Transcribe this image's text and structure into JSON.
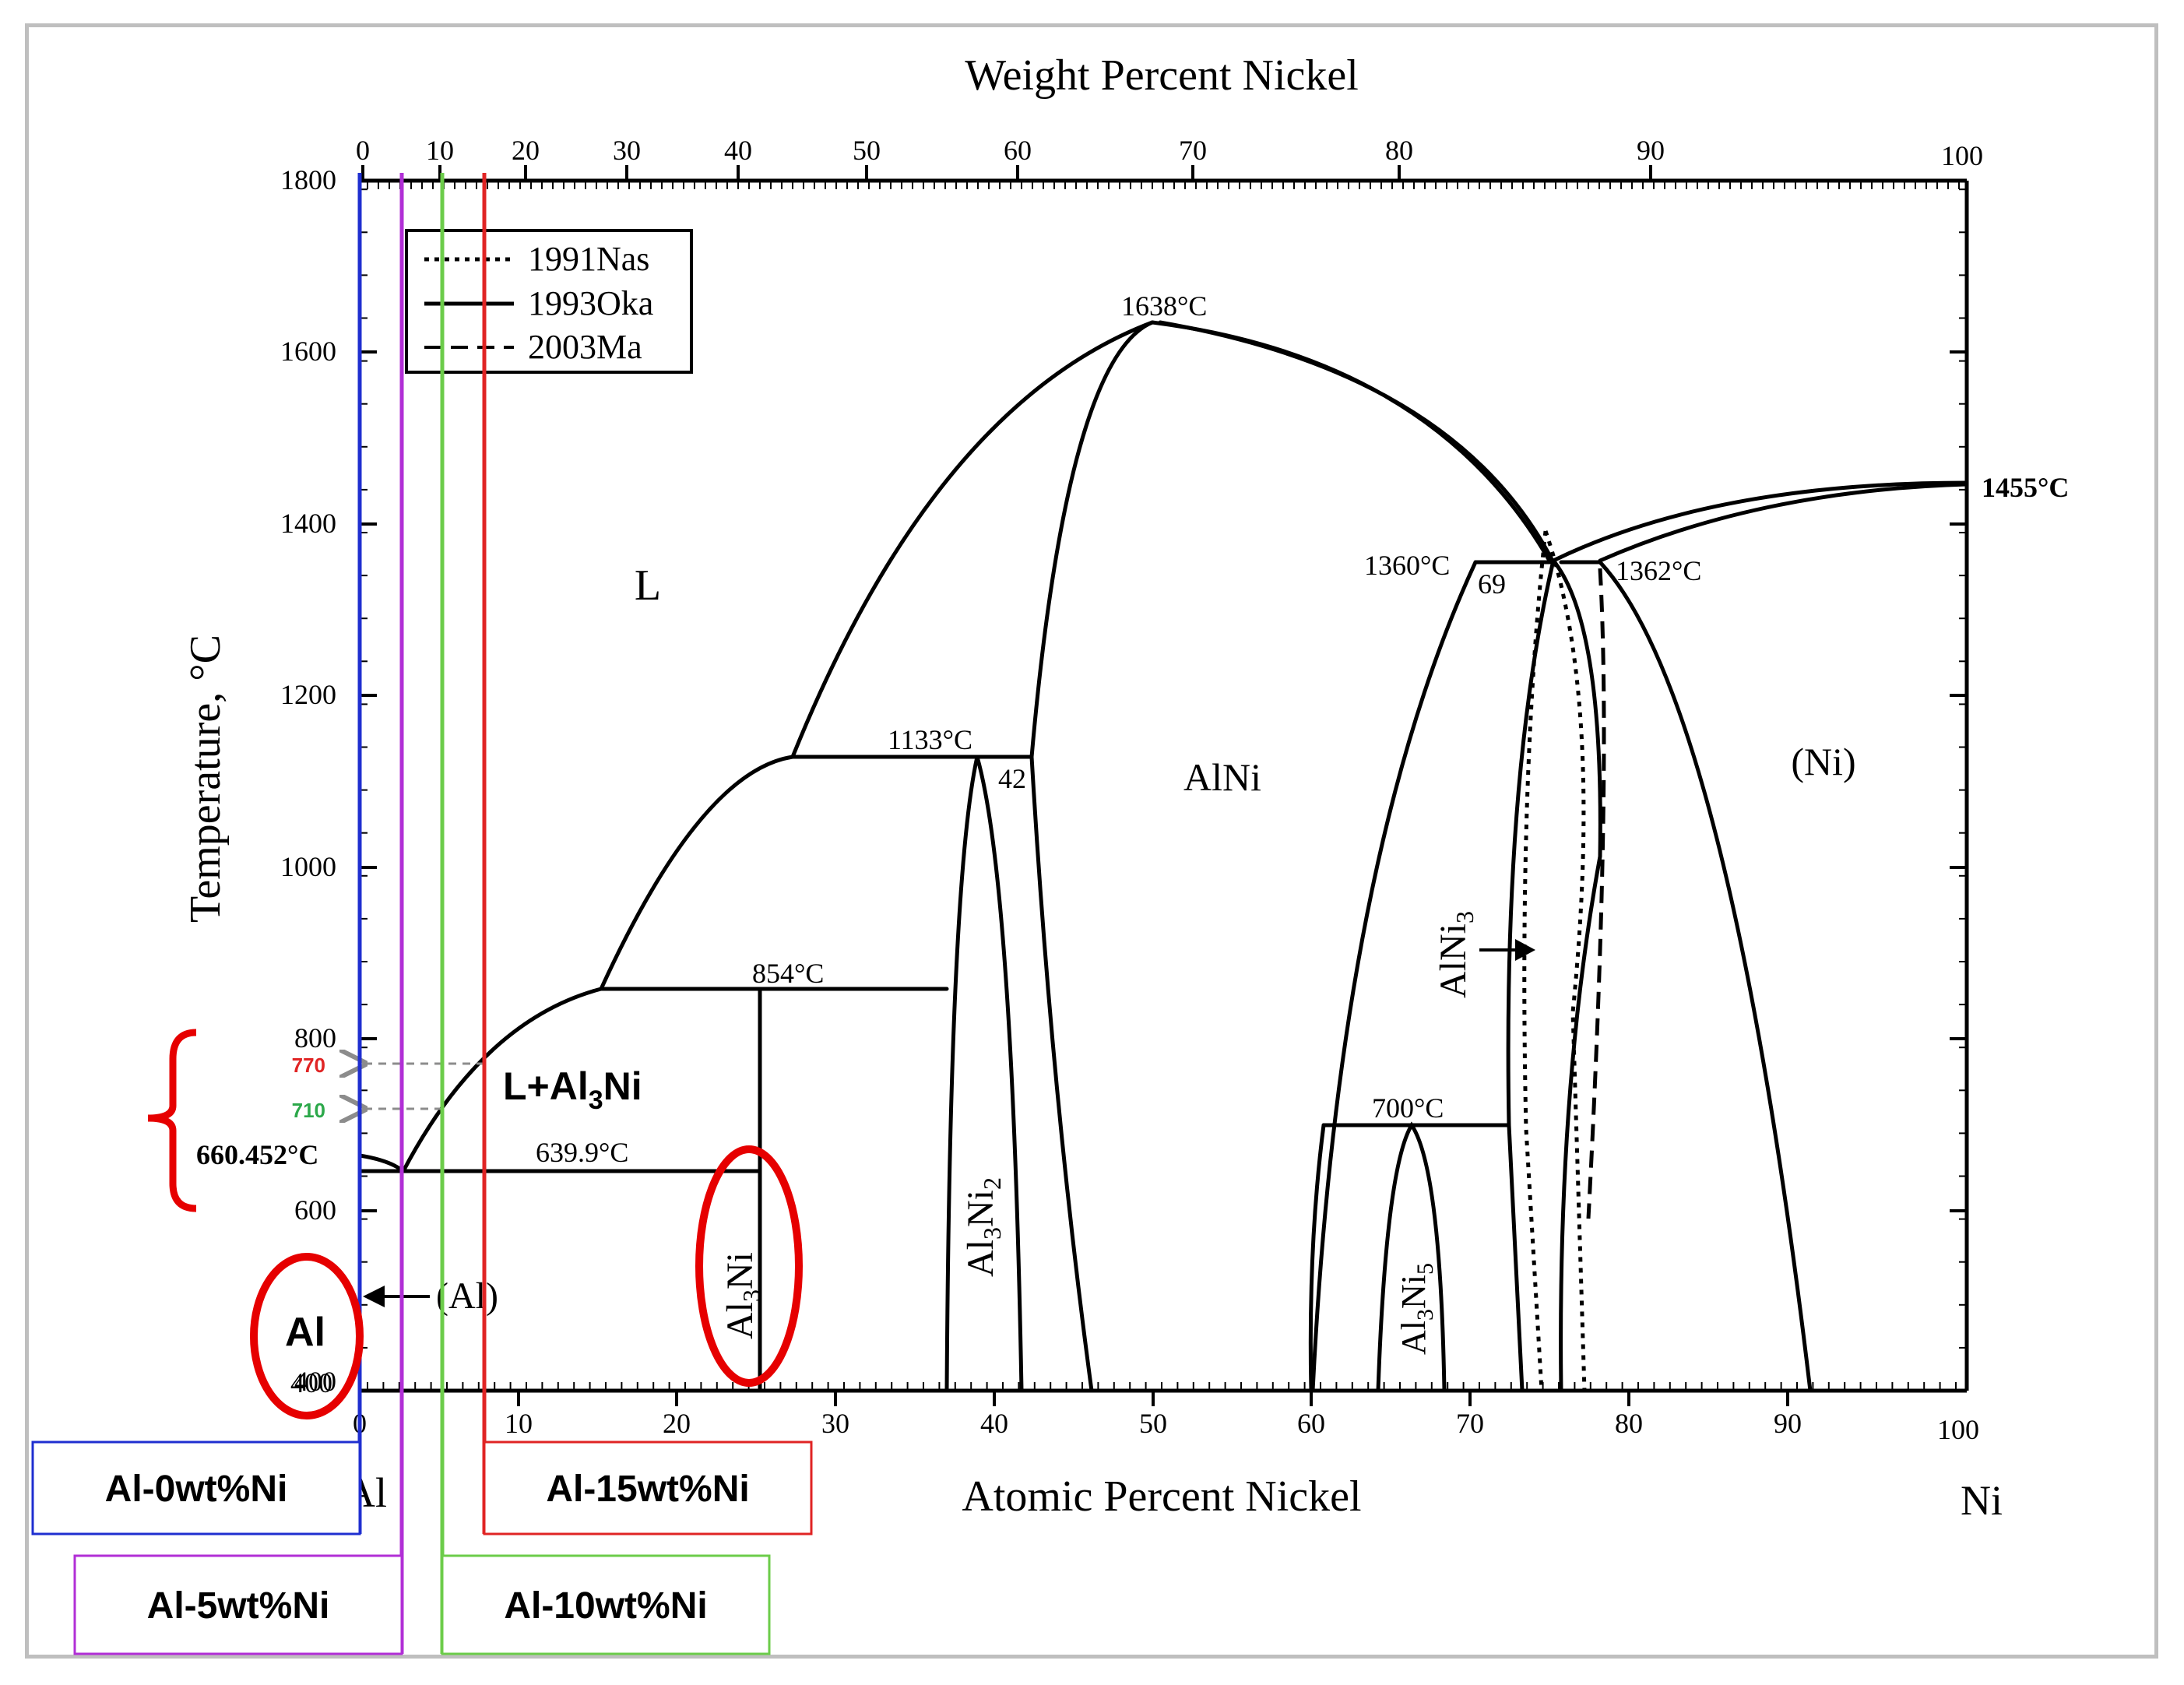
{
  "diagram": {
    "top_axis_title": "Weight Percent Nickel",
    "bottom_axis_title": "Atomic Percent Nickel",
    "y_axis_title": "Temperature, °C",
    "element_left": "Al",
    "element_right": "Ni",
    "top_ticks": [
      "0",
      "10",
      "20",
      "30",
      "40",
      "50",
      "60",
      "70",
      "80",
      "90",
      "100"
    ],
    "bottom_ticks": [
      "0",
      "10",
      "20",
      "30",
      "40",
      "50",
      "60",
      "70",
      "80",
      "90",
      "100"
    ],
    "y_ticks": [
      "400",
      "600",
      "800",
      "1000",
      "1200",
      "1400",
      "1600",
      "1800"
    ],
    "legend": [
      {
        "label": "1991Nas",
        "style": "dotted"
      },
      {
        "label": "1993Oka",
        "style": "solid"
      },
      {
        "label": "2003Ma",
        "style": "dashed"
      }
    ],
    "phase_labels": {
      "liquid": "L",
      "alni": "AlNi",
      "ni": "(Ni)",
      "al_solid": "(Al)",
      "al3ni2_main": "Al",
      "al3ni2_sub1": "3",
      "al3ni2_mid": "Ni",
      "al3ni2_sub2": "2",
      "al3ni_main": "Al",
      "al3ni_sub1": "3",
      "al3ni_mid": "Ni",
      "al3ni5_main": "Al",
      "al3ni5_sub1": "3",
      "al3ni5_mid": "Ni",
      "al3ni5_sub2": "5",
      "alni3_main": "AlNi",
      "alni3_sub": "3",
      "two_phase_main": "L+Al",
      "two_phase_sub": "3",
      "two_phase_end": "Ni"
    },
    "temperature_labels": {
      "t1638": "1638°C",
      "t1455": "1455°C",
      "t1360": "1360°C",
      "t1362": "1362°C",
      "t1133": "1133°C",
      "t854": "854°C",
      "t700": "700°C",
      "t660": "660.452°C",
      "t639": "639.9°C"
    },
    "composition_labels": {
      "c69": "69",
      "c42": "42"
    },
    "annotations": {
      "t770": "770",
      "t710": "710",
      "al_circle": "Al",
      "al_0": "Al-0wt%Ni",
      "al_5": "Al-5wt%Ni",
      "al_10": "Al-10wt%Ni",
      "al_15": "Al-15wt%Ni"
    },
    "colors": {
      "al_0": "#1f2fd0",
      "al_5": "#b12fd6",
      "al_10": "#6ccc4a",
      "al_15": "#e02424",
      "t770": "#e02424",
      "t710": "#2ca84a",
      "circle": "#e60000",
      "bracket": "#e60000",
      "frame": "#bfbfbf"
    }
  }
}
